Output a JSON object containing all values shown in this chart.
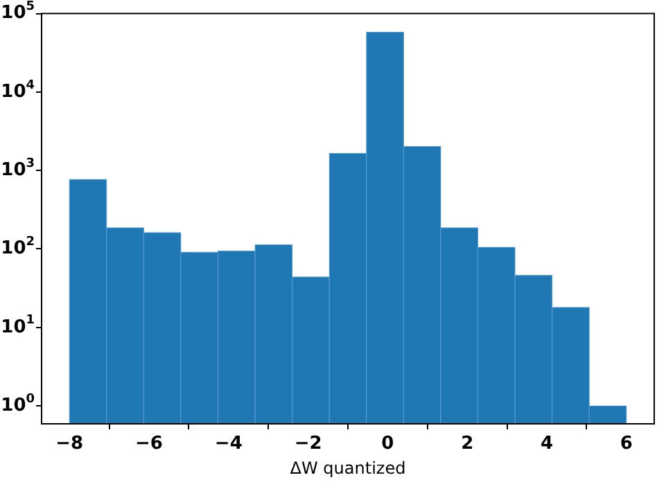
{
  "chart_data": {
    "type": "histogram",
    "xlabel": "ΔW quantized",
    "color": "#1f77b4",
    "bins": [
      -8,
      -7.0667,
      -6.1333,
      -5.2,
      -4.2667,
      -3.3333,
      -2.4,
      -1.4667,
      -0.5333,
      0.4,
      1.3333,
      2.2667,
      3.2,
      4.1333,
      5.0667,
      6
    ],
    "values": [
      770,
      186,
      161,
      91,
      94,
      113,
      44,
      1650,
      58000,
      2020,
      186,
      105,
      46,
      18,
      1
    ],
    "log": "y",
    "xlim": [
      -8.7,
      6.7
    ],
    "ylim": [
      0.59,
      100000
    ],
    "xticks": [
      {
        "value": -8,
        "label": "−8"
      },
      {
        "value": -6,
        "label": "−6"
      },
      {
        "value": -4,
        "label": "−4"
      },
      {
        "value": -2,
        "label": "−2"
      },
      0,
      2,
      4,
      6
    ],
    "yticks": [
      {
        "value": 1,
        "label": "10$^{0}$"
      },
      {
        "value": 10,
        "label": "10$^{1}$"
      },
      {
        "value": 100,
        "label": "10$^{2}$"
      },
      {
        "value": 1000,
        "label": "10$^{3}$"
      },
      {
        "value": 10000,
        "label": "10$^{4}$"
      },
      {
        "value": 100000,
        "label": "10$^{5}$"
      }
    ],
    "grid": false
  }
}
